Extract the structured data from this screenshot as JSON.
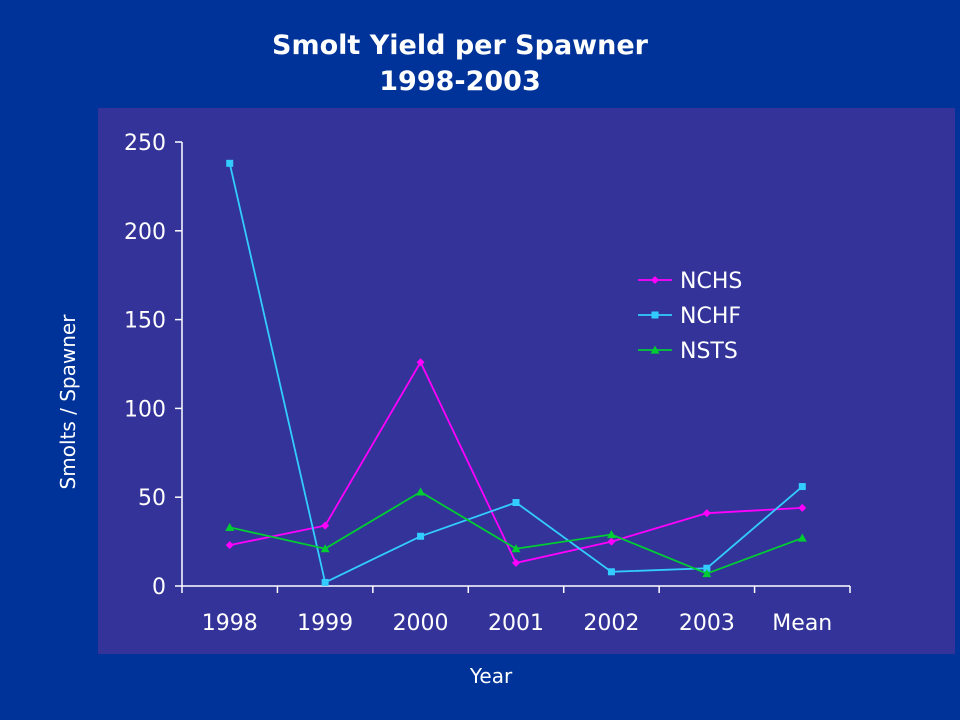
{
  "chart_data": {
    "type": "line",
    "title": "Smolt Yield per Spawner",
    "subtitle": "1998-2003",
    "xlabel": "Year",
    "ylabel": "Smolts / Spawner",
    "categories": [
      "1998",
      "1999",
      "2000",
      "2001",
      "2002",
      "2003",
      "Mean"
    ],
    "ylim": [
      0,
      250
    ],
    "yticks": [
      "0",
      "50",
      "100",
      "150",
      "200",
      "250"
    ],
    "grid": false,
    "legend_position": "right",
    "series": [
      {
        "name": "NCHS",
        "color": "#ff00ff",
        "marker": "diamond",
        "values": [
          23,
          34,
          126,
          13,
          25,
          41,
          44
        ]
      },
      {
        "name": "NCHF",
        "color": "#33ccff",
        "marker": "square",
        "values": [
          238,
          2,
          28,
          47,
          8,
          10,
          56
        ]
      },
      {
        "name": "NSTS",
        "color": "#00cc33",
        "marker": "triangle",
        "values": [
          33,
          21,
          53,
          21,
          29,
          7,
          27
        ]
      }
    ]
  }
}
